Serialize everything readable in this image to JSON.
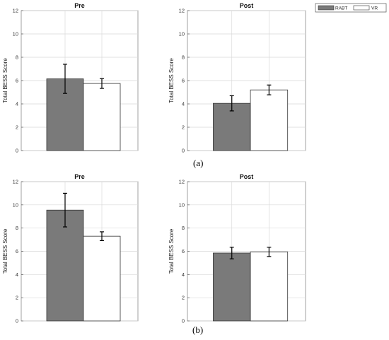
{
  "legend": [
    {
      "name": "RABT",
      "color": "#7a7a7a"
    },
    {
      "name": "VR",
      "color": "#ffffff"
    }
  ],
  "panel_labels": [
    "(a)",
    "(b)"
  ],
  "chart_data": [
    {
      "type": "bar",
      "title": "Pre",
      "xlabel": "",
      "ylabel": "Total BESS Score",
      "ylim": [
        0,
        12
      ],
      "yticks": [
        0,
        2,
        4,
        6,
        8,
        10,
        12
      ],
      "grid": true,
      "series": [
        {
          "name": "RABT",
          "values": [
            6.15
          ],
          "error": [
            1.25
          ]
        },
        {
          "name": "VR",
          "values": [
            5.75
          ],
          "error": [
            0.42
          ]
        }
      ]
    },
    {
      "type": "bar",
      "title": "Post",
      "xlabel": "",
      "ylabel": "Total BESS Score",
      "ylim": [
        0,
        12
      ],
      "yticks": [
        0,
        2,
        4,
        6,
        8,
        10,
        12
      ],
      "grid": true,
      "series": [
        {
          "name": "RABT",
          "values": [
            4.05
          ],
          "error": [
            0.65
          ]
        },
        {
          "name": "VR",
          "values": [
            5.2
          ],
          "error": [
            0.42
          ]
        }
      ]
    },
    {
      "type": "bar",
      "title": "Pre",
      "xlabel": "",
      "ylabel": "Total BESS Score",
      "ylim": [
        0,
        12
      ],
      "yticks": [
        0,
        2,
        4,
        6,
        8,
        10,
        12
      ],
      "grid": true,
      "series": [
        {
          "name": "RABT",
          "values": [
            9.55
          ],
          "error": [
            1.45
          ]
        },
        {
          "name": "VR",
          "values": [
            7.3
          ],
          "error": [
            0.38
          ]
        }
      ]
    },
    {
      "type": "bar",
      "title": "Post",
      "xlabel": "",
      "ylabel": "Total BESS Score",
      "ylim": [
        0,
        12
      ],
      "yticks": [
        0,
        2,
        4,
        6,
        8,
        10,
        12
      ],
      "grid": true,
      "series": [
        {
          "name": "RABT",
          "values": [
            5.85
          ],
          "error": [
            0.5
          ]
        },
        {
          "name": "VR",
          "values": [
            5.95
          ],
          "error": [
            0.4
          ]
        }
      ]
    }
  ]
}
